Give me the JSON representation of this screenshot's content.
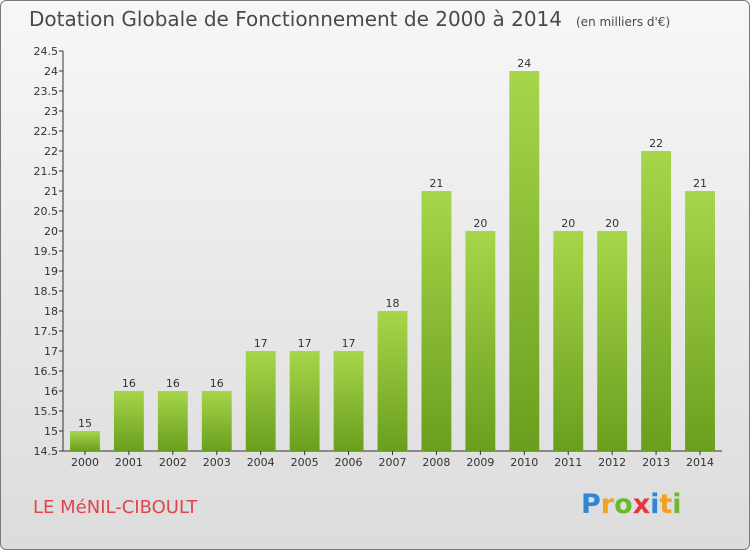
{
  "title": "Dotation Globale de Fonctionnement de 2000 à 2014",
  "unit": "(en milliers d'€)",
  "commune": "LE MéNIL-CIBOULT",
  "logo": {
    "text": "Proxiti",
    "letters": [
      {
        "ch": "P",
        "color": "#2e86d6"
      },
      {
        "ch": "r",
        "color": "#f2a11c"
      },
      {
        "ch": "o",
        "color": "#6aba2c"
      },
      {
        "ch": "x",
        "color": "#e8343e"
      },
      {
        "ch": "i",
        "color": "#2e86d6"
      },
      {
        "ch": "t",
        "color": "#f2a11c"
      },
      {
        "ch": "i",
        "color": "#6aba2c"
      }
    ]
  },
  "colors": {
    "bar_top": "#a6d64a",
    "bar_bottom": "#6a9e1e",
    "title": "#4a4a4a",
    "commune": "#e0454e"
  },
  "chart_data": {
    "type": "bar",
    "title": "Dotation Globale de Fonctionnement de 2000 à 2014",
    "xlabel": "",
    "ylabel": "",
    "categories": [
      "2000",
      "2001",
      "2002",
      "2003",
      "2004",
      "2005",
      "2006",
      "2007",
      "2008",
      "2009",
      "2010",
      "2011",
      "2012",
      "2013",
      "2014"
    ],
    "values": [
      15,
      16,
      16,
      16,
      17,
      17,
      17,
      18,
      21,
      20,
      24,
      20,
      20,
      22,
      21
    ],
    "ylim": [
      14.5,
      24.5
    ],
    "yticks": [
      "14.5",
      "15",
      "15.5",
      "16",
      "16.5",
      "17",
      "17.5",
      "18",
      "18.5",
      "19",
      "19.5",
      "20",
      "20.5",
      "21",
      "21.5",
      "22",
      "22.5",
      "23",
      "23.5",
      "24",
      "24.5"
    ],
    "grid": false,
    "legend": "none"
  }
}
